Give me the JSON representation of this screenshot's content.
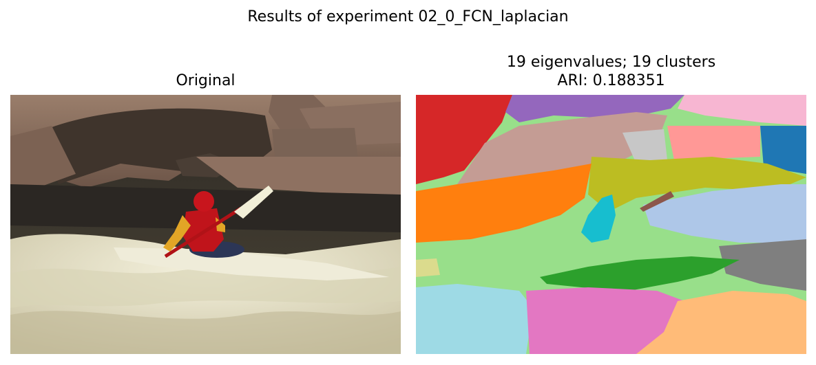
{
  "figure": {
    "suptitle": "Results of experiment 02_0_FCN_laplacian"
  },
  "panels": [
    {
      "title": "Original"
    },
    {
      "title_line1": "19 eigenvalues; 19 clusters",
      "title_line2": "ARI: 0.188351"
    }
  ],
  "colors": {
    "rock": "#8f7463",
    "rock_dark": "#3f342c",
    "water_dark": "#2a2622",
    "foam": "#ece8cf",
    "kayaker_red": "#c0141b",
    "jacket_yellow": "#e2a526",
    "paddle": "#f2efd8",
    "cluster_palette": [
      "#d62728",
      "#9467bd",
      "#c49c94",
      "#98df8a",
      "#f7b6d2",
      "#ff9896",
      "#1f77b4",
      "#bcbd22",
      "#ff7f0e",
      "#17becf",
      "#8c564b",
      "#aec7e8",
      "#7f7f7f",
      "#2ca02c",
      "#e377c2",
      "#ffbb78",
      "#9edae5",
      "#dbdb8d",
      "#c7c7c7"
    ]
  }
}
